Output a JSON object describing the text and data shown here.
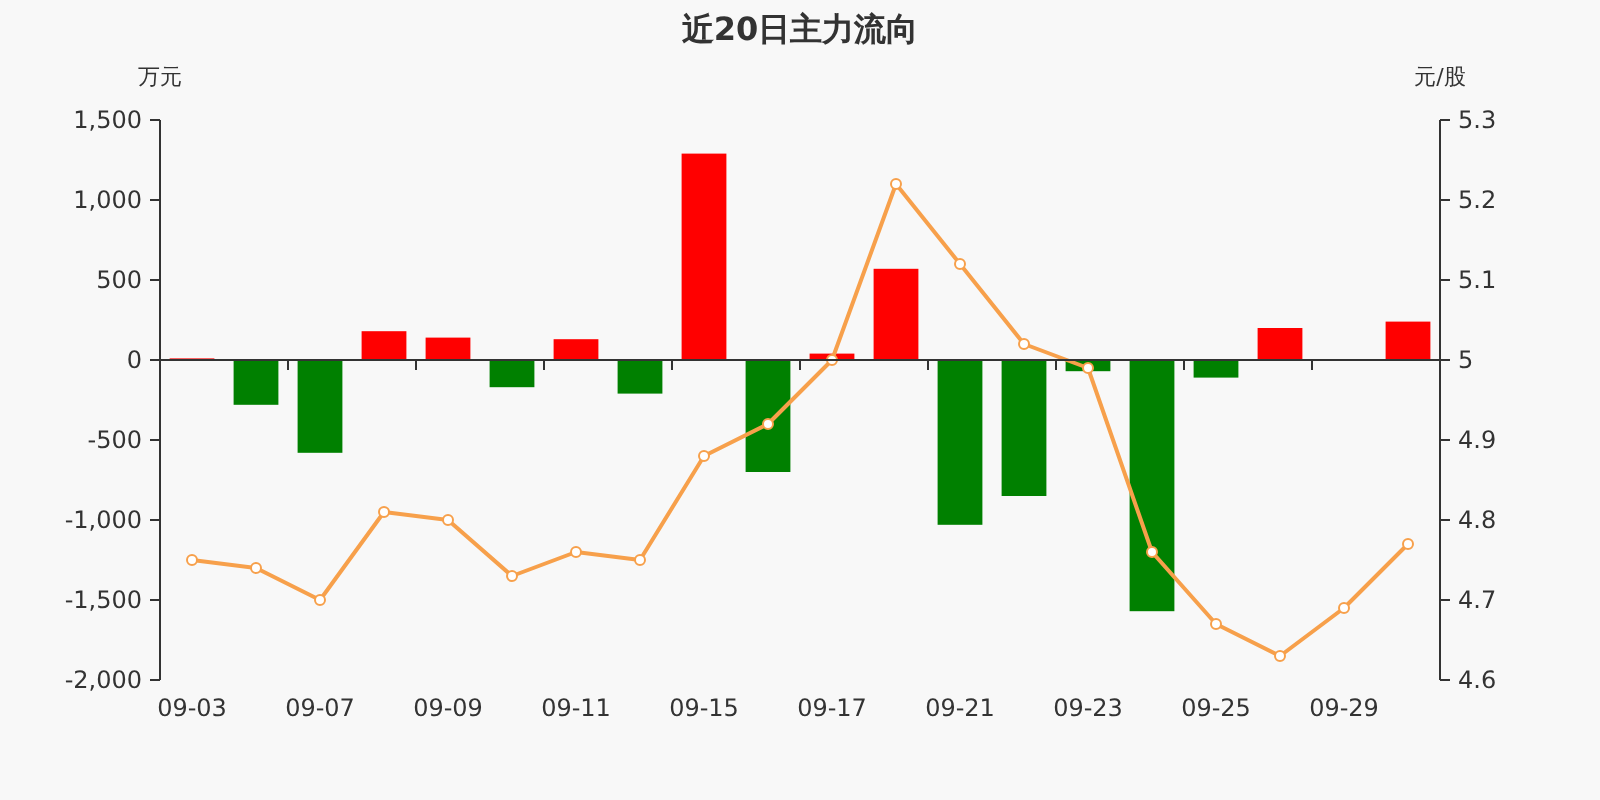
{
  "chart_data": {
    "type": "bar",
    "title": "近20日主力流向",
    "ylabel": "万元",
    "y2label": "元/股",
    "categories": [
      "09-03",
      null,
      "09-07",
      null,
      "09-09",
      null,
      "09-11",
      null,
      "09-15",
      null,
      "09-17",
      null,
      "09-21",
      null,
      "09-23",
      null,
      "09-25",
      null,
      "09-29",
      null
    ],
    "series": [
      {
        "values": [
          10,
          -280,
          -580,
          180,
          140,
          -170,
          130,
          -210,
          1290,
          -700,
          40,
          570,
          -1030,
          -850,
          -70,
          -1570,
          -110,
          200,
          0,
          240
        ],
        "colors": [
          "#ff0000",
          "#008000",
          "#008000",
          "#ff0000",
          "#ff0000",
          "#008000",
          "#ff0000",
          "#008000",
          "#ff0000",
          "#008000",
          "#ff0000",
          "#ff0000",
          "#008000",
          "#008000",
          "#008000",
          "#008000",
          "#008000",
          "#ff0000",
          "#ff0000",
          "#ff0000"
        ]
      },
      {
        "type": "line",
        "axis": "y2",
        "color": "#f7a04b",
        "values": [
          4.75,
          4.74,
          4.7,
          4.81,
          4.8,
          4.73,
          4.76,
          4.75,
          4.88,
          4.92,
          5.0,
          5.22,
          5.12,
          5.02,
          4.99,
          4.76,
          4.67,
          4.63,
          4.69,
          4.77
        ]
      }
    ],
    "marker": "circle",
    "ylim": [
      -2000,
      1500
    ],
    "yticks": [
      {
        "value": -2000,
        "label": "-2,000"
      },
      {
        "value": -1500,
        "label": "-1,500"
      },
      {
        "value": -1000,
        "label": "-1,000"
      },
      -500,
      0,
      500,
      {
        "value": 1000,
        "label": "1,000"
      },
      {
        "value": 1500,
        "label": "1,500"
      }
    ],
    "y2lim": [
      4.6,
      5.3
    ],
    "y2ticks": [
      4.6,
      4.7,
      4.8,
      4.9,
      5,
      5.1,
      5.2,
      5.3
    ]
  }
}
